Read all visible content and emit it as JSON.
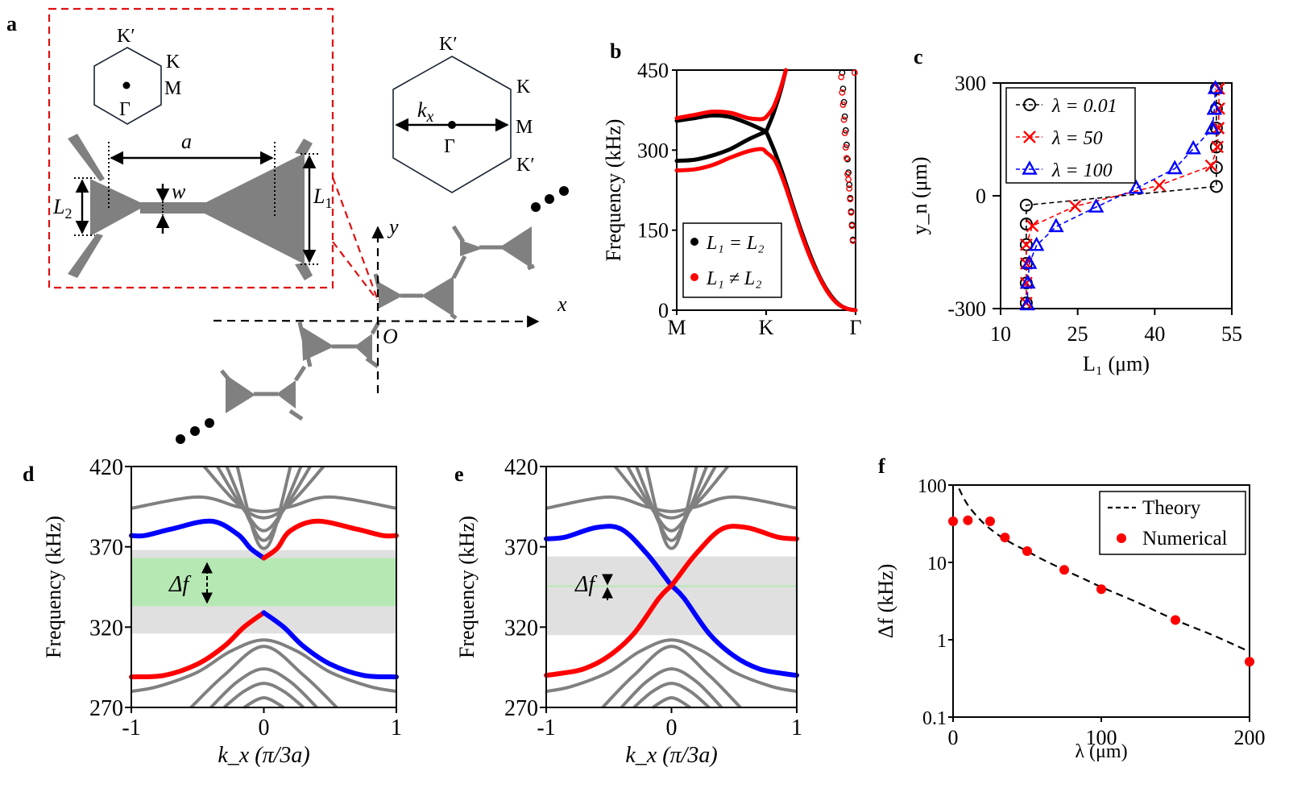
{
  "panel_labels": {
    "a": "a",
    "b": "b",
    "c": "c",
    "d": "d",
    "e": "e",
    "f": "f"
  },
  "schematic": {
    "bz_small": {
      "labels": {
        "k_prime": "K′",
        "k": "K",
        "m": "M",
        "gamma": "Γ"
      }
    },
    "bz_large": {
      "labels": {
        "k_prime_top": "K′",
        "k": "K",
        "m": "M",
        "k_prime_bottom": "K′",
        "gamma": "Γ",
        "kx": "k",
        "kx_sub": "x"
      }
    },
    "unit_cell": {
      "a": "a",
      "w": "w",
      "L1": "L",
      "L1_sub": "1",
      "L2": "L",
      "L2_sub": "2"
    },
    "axes": {
      "x": "x",
      "y": "y",
      "origin": "O"
    },
    "colors": {
      "material": "#808080",
      "zoom_box": "#e01010"
    }
  },
  "chart_data": [
    {
      "id": "b",
      "type": "line",
      "title": "",
      "xlabel": "",
      "ylabel": "Frequency (kHz)",
      "x_ticks": [
        "M",
        "K",
        "Γ"
      ],
      "x_tick_positions": [
        0,
        1,
        2
      ],
      "y_ticks": [
        0,
        150,
        300,
        450
      ],
      "ylim": [
        0,
        450
      ],
      "legend": {
        "placement": "bottom-left",
        "entries": [
          {
            "label": "L₁ = L₂",
            "color": "#000000"
          },
          {
            "label": "L₁ ≠ L₂",
            "color": "#ff0000"
          }
        ]
      },
      "series": [
        {
          "name": "L1=L2 lower",
          "color": "#000000",
          "x": [
            0,
            0.2,
            0.4,
            0.6,
            0.8,
            1.0
          ],
          "y": [
            280,
            282,
            290,
            302,
            320,
            335
          ]
        },
        {
          "name": "L1=L2 upper",
          "color": "#000000",
          "x": [
            0,
            0.2,
            0.4,
            0.6,
            0.8,
            1.0
          ],
          "y": [
            355,
            360,
            365,
            362,
            350,
            335
          ]
        },
        {
          "name": "L1=L2 acoustic",
          "color": "#000000",
          "x": [
            1.0,
            1.1,
            1.2,
            1.3,
            1.4,
            1.5,
            1.6,
            1.7,
            1.8,
            1.9,
            2.0
          ],
          "y": [
            335,
            295,
            248,
            195,
            145,
            100,
            62,
            33,
            13,
            3,
            0
          ]
        },
        {
          "name": "L1=L2 rising",
          "color": "#000000",
          "x": [
            1.0,
            1.08,
            1.16,
            1.22
          ],
          "y": [
            335,
            368,
            410,
            450
          ]
        },
        {
          "name": "L1≠L2 lower",
          "color": "#ff0000",
          "x": [
            0,
            0.2,
            0.4,
            0.6,
            0.8,
            0.95,
            1.0
          ],
          "y": [
            262,
            264,
            272,
            286,
            298,
            302,
            296
          ]
        },
        {
          "name": "L1≠L2 upper",
          "color": "#ff0000",
          "x": [
            0,
            0.2,
            0.4,
            0.6,
            0.8,
            0.95,
            1.0
          ],
          "y": [
            360,
            366,
            372,
            370,
            360,
            358,
            362
          ]
        },
        {
          "name": "L1≠L2 acoustic",
          "color": "#ff0000",
          "x": [
            1.0,
            1.1,
            1.2,
            1.3,
            1.4,
            1.5,
            1.6,
            1.7,
            1.8,
            1.9,
            2.0
          ],
          "y": [
            296,
            280,
            240,
            190,
            140,
            96,
            60,
            31,
            12,
            3,
            0
          ]
        },
        {
          "name": "L1≠L2 rising",
          "color": "#ff0000",
          "x": [
            1.0,
            1.08,
            1.16,
            1.22
          ],
          "y": [
            362,
            380,
            415,
            450
          ]
        }
      ],
      "open_markers": {
        "black": {
          "x": [
            1.85,
            1.86,
            1.87,
            1.88,
            1.89,
            1.9,
            1.91,
            1.92,
            1.93,
            1.94,
            1.95,
            1.96,
            1.97
          ],
          "y": [
            445,
            415,
            390,
            363,
            337,
            310,
            283,
            258,
            235,
            210,
            185,
            160,
            132
          ]
        },
        "red": {
          "x": [
            1.84,
            1.85,
            1.86,
            1.87,
            1.88,
            1.89,
            1.9,
            1.91,
            1.92,
            1.93,
            1.94,
            1.95,
            1.96,
            1.97,
            1.99
          ],
          "y": [
            437,
            408,
            385,
            357,
            332,
            305,
            285,
            255,
            245,
            228,
            208,
            183,
            158,
            130,
            445
          ]
        }
      }
    },
    {
      "id": "c",
      "type": "scatter",
      "xlabel": "L₁ (μm)",
      "ylabel": "y_n (μm)",
      "x_ticks": [
        10,
        25,
        40,
        55
      ],
      "y_ticks": [
        -300,
        0,
        300
      ],
      "xlim": [
        10,
        55
      ],
      "ylim": [
        -300,
        300
      ],
      "legend": {
        "placement": "top-left"
      },
      "series": [
        {
          "name": "λ = 0.01",
          "color": "#000000",
          "marker": "circle",
          "x": [
            15,
            15,
            15,
            15,
            15,
            15,
            52,
            52,
            52,
            52,
            52,
            52
          ],
          "y": [
            -25,
            -75,
            -130,
            -180,
            -232,
            -285,
            25,
            75,
            130,
            180,
            232,
            285
          ]
        },
        {
          "name": "λ = 50",
          "color": "#ff0000",
          "marker": "x",
          "x": [
            15,
            15,
            15,
            15,
            16.2,
            24.5,
            40.9,
            51,
            52.2,
            52.4,
            52.5,
            52.5
          ],
          "y": [
            -285,
            -232,
            -180,
            -130,
            -80,
            -28,
            28,
            80,
            130,
            180,
            232,
            285
          ]
        },
        {
          "name": "λ = 100",
          "color": "#0000ff",
          "marker": "triangle",
          "x": [
            15.2,
            15.3,
            15.6,
            17,
            20.8,
            28.6,
            36.4,
            43.9,
            47.5,
            51.2,
            51.6,
            51.8
          ],
          "y": [
            -290,
            -232,
            -180,
            -132,
            -82,
            -30,
            20,
            72,
            125,
            178,
            230,
            285
          ]
        }
      ]
    },
    {
      "id": "d",
      "type": "line",
      "xlabel": "k_x (π/3a)",
      "ylabel": "Frequency (kHz)",
      "x_ticks": [
        -1,
        0,
        1
      ],
      "y_ticks": [
        270,
        320,
        370,
        420
      ],
      "xlim": [
        -1,
        1
      ],
      "ylim": [
        270,
        420
      ],
      "bands": [
        {
          "name": "bulk-gap",
          "color": "#e0e0e0",
          "range": [
            316,
            368
          ]
        },
        {
          "name": "edge-gap Δf",
          "color": "#b6e8b4",
          "range": [
            333,
            363
          ]
        }
      ],
      "annotation": "Δf",
      "series": [
        {
          "name": "upper edge (left)",
          "color": "#0000ff",
          "x": [
            -1,
            -0.9,
            -0.7,
            -0.4,
            -0.2,
            -0.1,
            0
          ],
          "y": [
            377,
            377,
            381,
            386,
            378,
            369,
            363
          ]
        },
        {
          "name": "upper edge (right)",
          "color": "#ff0000",
          "x": [
            0,
            0.1,
            0.2,
            0.4,
            0.7,
            0.9,
            1
          ],
          "y": [
            363,
            369,
            380,
            386,
            381,
            377,
            377
          ]
        },
        {
          "name": "lower edge (left)",
          "color": "#ff0000",
          "x": [
            -1,
            -0.75,
            -0.5,
            -0.3,
            -0.15,
            0
          ],
          "y": [
            289,
            290,
            297,
            308,
            320,
            329
          ]
        },
        {
          "name": "lower edge (right)",
          "color": "#0000ff",
          "x": [
            0,
            0.15,
            0.3,
            0.5,
            0.75,
            1
          ],
          "y": [
            329,
            320,
            308,
            297,
            290,
            289
          ]
        }
      ]
    },
    {
      "id": "e",
      "type": "line",
      "xlabel": "k_x (π/3a)",
      "ylabel": "Frequency (kHz)",
      "x_ticks": [
        -1,
        0,
        1
      ],
      "y_ticks": [
        270,
        320,
        370,
        420
      ],
      "xlim": [
        -1,
        1
      ],
      "ylim": [
        270,
        420
      ],
      "bands": [
        {
          "name": "bulk-gap",
          "color": "#e0e0e0",
          "range": [
            315,
            364
          ]
        },
        {
          "name": "edge-gap Δf",
          "color": "#b6e8b4",
          "range": [
            345,
            346
          ]
        }
      ],
      "annotation": "Δf",
      "series": [
        {
          "name": "edge (blue)",
          "color": "#0000ff",
          "x": [
            -1,
            -0.85,
            -0.6,
            -0.4,
            -0.2,
            -0.05,
            0,
            0.1,
            0.3,
            0.5,
            0.7,
            0.9,
            1
          ],
          "y": [
            375,
            376,
            382,
            381,
            366,
            351,
            346,
            338,
            316,
            302,
            294,
            291,
            290
          ]
        },
        {
          "name": "edge (red)",
          "color": "#ff0000",
          "x": [
            -1,
            -0.9,
            -0.7,
            -0.5,
            -0.3,
            -0.1,
            0,
            0.05,
            0.2,
            0.4,
            0.6,
            0.85,
            1
          ],
          "y": [
            290,
            291,
            294,
            302,
            316,
            338,
            346,
            351,
            366,
            381,
            382,
            376,
            375
          ]
        }
      ]
    },
    {
      "id": "f",
      "type": "scatter",
      "xlabel": "λ (μm)",
      "ylabel": "Δf (kHz)",
      "x_ticks": [
        0,
        100,
        200
      ],
      "y_ticks": [
        "0.1",
        "1",
        "10",
        "100"
      ],
      "y_scale": "log",
      "xlim": [
        0,
        200
      ],
      "ylim": [
        0.1,
        100
      ],
      "legend": {
        "placement": "top-right",
        "entries": [
          {
            "label": "Theory",
            "style": "dashed",
            "color": "#000000"
          },
          {
            "label": "Numerical",
            "style": "marker",
            "color": "#ff0000"
          }
        ]
      },
      "series": [
        {
          "name": "Theory",
          "type": "line",
          "color": "#000000",
          "x": [
            4,
            10,
            20,
            30,
            40,
            50,
            60,
            75,
            90,
            100,
            125,
            150,
            175,
            200
          ],
          "y": [
            90,
            55,
            33,
            23,
            17.5,
            14,
            11,
            8,
            5.9,
            4.8,
            3.0,
            1.8,
            1.15,
            0.7
          ]
        },
        {
          "name": "Numerical",
          "type": "scatter",
          "color": "#ff0000",
          "x": [
            0.01,
            10,
            25,
            35,
            50,
            75,
            100,
            150,
            200
          ],
          "y": [
            34,
            35,
            34,
            21,
            14,
            8,
            4.5,
            1.8,
            0.52
          ]
        }
      ]
    }
  ]
}
